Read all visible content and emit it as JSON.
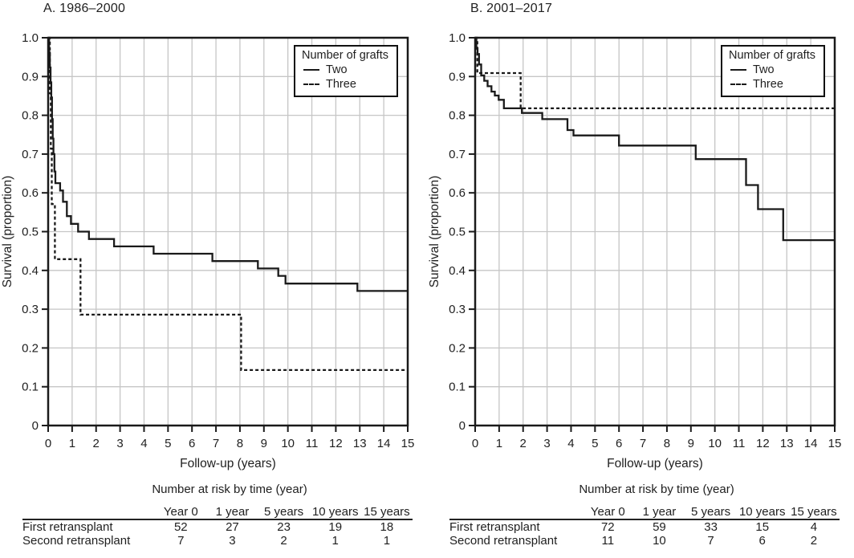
{
  "figure": {
    "colors": {
      "curve": "#1a1a1a",
      "grid": "#c6c6c6",
      "frame": "#1a1a1a",
      "text": "#1f1f1f",
      "background": "#ffffff"
    },
    "panels": [
      {
        "title": "A. 1986–2000",
        "legend": {
          "title": "Number of grafts",
          "items": [
            {
              "label": "Two",
              "style": "solid"
            },
            {
              "label": "Three",
              "style": "dashed"
            }
          ]
        },
        "risk_table": {
          "title": "Number at risk by time (year)",
          "columns": [
            "Year 0",
            "1 year",
            "5 years",
            "10 years",
            "15 years"
          ],
          "rows": [
            {
              "label": "First retransplant",
              "values": [
                "52",
                "27",
                "23",
                "19",
                "18"
              ]
            },
            {
              "label": "Second retransplant",
              "values": [
                "7",
                "3",
                "2",
                "1",
                "1"
              ]
            }
          ]
        }
      },
      {
        "title": "B. 2001–2017",
        "legend": {
          "title": "Number of grafts",
          "items": [
            {
              "label": "Two",
              "style": "solid"
            },
            {
              "label": "Three",
              "style": "dashed"
            }
          ]
        },
        "risk_table": {
          "title": "Number at risk by time (year)",
          "columns": [
            "Year 0",
            "1 year",
            "5 years",
            "10 years",
            "15 years"
          ],
          "rows": [
            {
              "label": "First retransplant",
              "values": [
                "72",
                "59",
                "33",
                "15",
                "4"
              ]
            },
            {
              "label": "Second retransplant",
              "values": [
                "11",
                "10",
                "7",
                "6",
                "2"
              ]
            }
          ]
        }
      }
    ]
  },
  "chart_data": [
    {
      "type": "line",
      "subtype": "kaplan-meier-step",
      "title": "A. 1986–2000",
      "xlabel": "Follow-up (years)",
      "ylabel": "Survival (proportion)",
      "xlim": [
        0,
        15
      ],
      "ylim": [
        0,
        1.0
      ],
      "xticks": [
        0,
        1,
        2,
        3,
        4,
        5,
        6,
        7,
        8,
        9,
        10,
        11,
        12,
        13,
        14,
        15
      ],
      "yticks": [
        "0",
        "0.1",
        "0.2",
        "0.3",
        "0.4",
        "0.5",
        "0.6",
        "0.7",
        "0.8",
        "0.9",
        "1.0"
      ],
      "grid": true,
      "legend_position": "upper right",
      "series": [
        {
          "name": "Two",
          "style": "solid",
          "steps": [
            [
              0,
              1.0
            ],
            [
              0.04,
              0.962
            ],
            [
              0.07,
              0.923
            ],
            [
              0.1,
              0.885
            ],
            [
              0.13,
              0.846
            ],
            [
              0.16,
              0.79
            ],
            [
              0.19,
              0.74
            ],
            [
              0.22,
              0.7
            ],
            [
              0.26,
              0.655
            ],
            [
              0.3,
              0.625
            ],
            [
              0.5,
              0.606
            ],
            [
              0.62,
              0.577
            ],
            [
              0.78,
              0.54
            ],
            [
              0.95,
              0.52
            ],
            [
              1.25,
              0.5
            ],
            [
              1.7,
              0.481
            ],
            [
              2.75,
              0.462
            ],
            [
              4.4,
              0.443
            ],
            [
              6.85,
              0.424
            ],
            [
              8.75,
              0.405
            ],
            [
              9.6,
              0.386
            ],
            [
              9.9,
              0.366
            ],
            [
              12.9,
              0.347
            ],
            [
              15,
              0.347
            ]
          ]
        },
        {
          "name": "Three",
          "style": "dashed",
          "steps": [
            [
              0,
              1.0
            ],
            [
              0.07,
              0.857
            ],
            [
              0.11,
              0.714
            ],
            [
              0.15,
              0.571
            ],
            [
              0.28,
              0.429
            ],
            [
              1.35,
              0.286
            ],
            [
              8.05,
              0.143
            ],
            [
              15,
              0.143
            ]
          ]
        }
      ]
    },
    {
      "type": "line",
      "subtype": "kaplan-meier-step",
      "title": "B. 2001–2017",
      "xlabel": "Follow-up (years)",
      "ylabel": "Survival (proportion)",
      "xlim": [
        0,
        15
      ],
      "ylim": [
        0,
        1.0
      ],
      "xticks": [
        0,
        1,
        2,
        3,
        4,
        5,
        6,
        7,
        8,
        9,
        10,
        11,
        12,
        13,
        14,
        15
      ],
      "yticks": [
        "0",
        "0.1",
        "0.2",
        "0.3",
        "0.4",
        "0.5",
        "0.6",
        "0.7",
        "0.8",
        "0.9",
        "1.0"
      ],
      "grid": true,
      "legend_position": "upper right",
      "series": [
        {
          "name": "Two",
          "style": "solid",
          "steps": [
            [
              0,
              1.0
            ],
            [
              0.05,
              0.972
            ],
            [
              0.1,
              0.958
            ],
            [
              0.16,
              0.931
            ],
            [
              0.25,
              0.903
            ],
            [
              0.38,
              0.889
            ],
            [
              0.52,
              0.875
            ],
            [
              0.68,
              0.861
            ],
            [
              0.82,
              0.851
            ],
            [
              0.98,
              0.84
            ],
            [
              1.2,
              0.818
            ],
            [
              1.95,
              0.806
            ],
            [
              2.8,
              0.79
            ],
            [
              3.85,
              0.762
            ],
            [
              4.1,
              0.748
            ],
            [
              6.0,
              0.722
            ],
            [
              9.2,
              0.687
            ],
            [
              11.3,
              0.62
            ],
            [
              11.8,
              0.558
            ],
            [
              12.85,
              0.478
            ],
            [
              15,
              0.478
            ]
          ]
        },
        {
          "name": "Three",
          "style": "dashed",
          "steps": [
            [
              0,
              1.0
            ],
            [
              0.09,
              0.909
            ],
            [
              1.9,
              0.818
            ],
            [
              15,
              0.818
            ]
          ]
        }
      ]
    }
  ]
}
